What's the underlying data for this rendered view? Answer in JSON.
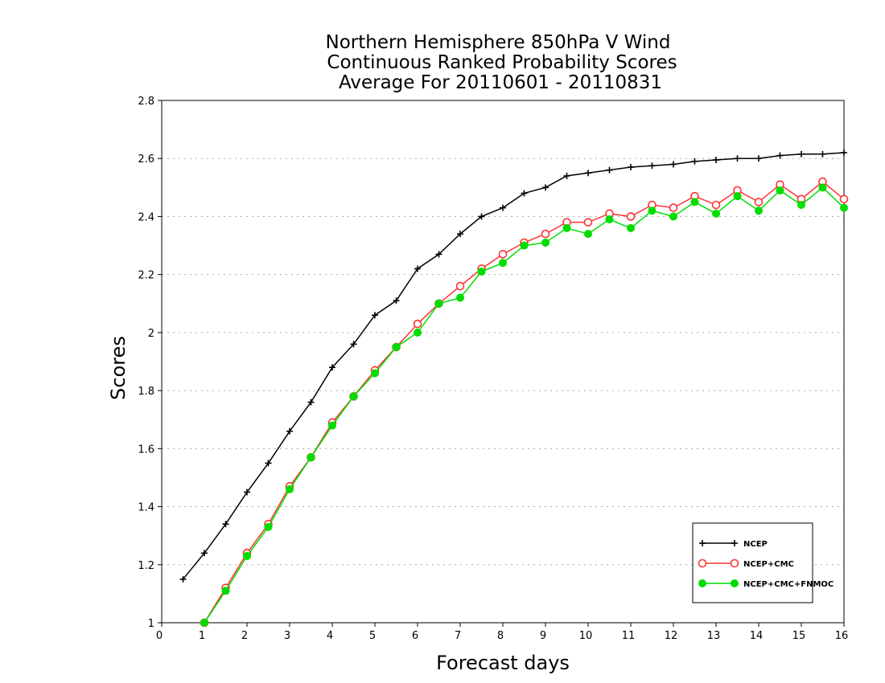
{
  "chart_data": {
    "type": "line",
    "title": [
      "Northern Hemisphere 850hPa V Wind",
      "Continuous Ranked Probability Scores",
      "Average For 20110601 - 20110831"
    ],
    "xlabel": "Forecast days",
    "ylabel": "Scores",
    "xlim": [
      0,
      16
    ],
    "ylim": [
      1,
      2.8
    ],
    "xticks": [
      "0",
      "1",
      "2",
      "3",
      "4",
      "5",
      "6",
      "7",
      "8",
      "9",
      "10",
      "11",
      "12",
      "13",
      "14",
      "15",
      "16"
    ],
    "yticks": [
      "1",
      "1.2",
      "1.4",
      "1.6",
      "1.8",
      "2",
      "2.2",
      "2.4",
      "2.6",
      "2.8"
    ],
    "grid": "horizontal dotted",
    "legend_position": "bottom-right",
    "series": [
      {
        "name": "NCEP",
        "color": "#000000",
        "marker": "plus",
        "x": [
          0.5,
          1,
          1.5,
          2,
          2.5,
          3,
          3.5,
          4,
          4.5,
          5,
          5.5,
          6,
          6.5,
          7,
          7.5,
          8,
          8.5,
          9,
          9.5,
          10,
          10.5,
          11,
          11.5,
          12,
          12.5,
          13,
          13.5,
          14,
          14.5,
          15,
          15.5,
          16
        ],
        "y": [
          1.15,
          1.24,
          1.34,
          1.45,
          1.55,
          1.66,
          1.76,
          1.88,
          1.96,
          2.06,
          2.11,
          2.22,
          2.27,
          2.34,
          2.4,
          2.43,
          2.48,
          2.5,
          2.54,
          2.55,
          2.56,
          2.57,
          2.575,
          2.58,
          2.59,
          2.595,
          2.6,
          2.6,
          2.61,
          2.615,
          2.615,
          2.62
        ]
      },
      {
        "name": "NCEP+CMC",
        "color": "#ff3333",
        "marker": "open-circle",
        "x": [
          1,
          1.5,
          2,
          2.5,
          3,
          3.5,
          4,
          4.5,
          5,
          5.5,
          6,
          6.5,
          7,
          7.5,
          8,
          8.5,
          9,
          9.5,
          10,
          10.5,
          11,
          11.5,
          12,
          12.5,
          13,
          13.5,
          14,
          14.5,
          15,
          15.5,
          16
        ],
        "y": [
          1.0,
          1.12,
          1.24,
          1.34,
          1.47,
          1.57,
          1.69,
          1.78,
          1.87,
          1.95,
          2.03,
          2.1,
          2.16,
          2.22,
          2.27,
          2.31,
          2.34,
          2.38,
          2.38,
          2.41,
          2.4,
          2.44,
          2.43,
          2.47,
          2.44,
          2.49,
          2.45,
          2.51,
          2.46,
          2.52,
          2.46
        ]
      },
      {
        "name": "NCEP+CMC+FNMOC",
        "color": "#00dd00",
        "marker": "filled-circle",
        "x": [
          1,
          1.5,
          2,
          2.5,
          3,
          3.5,
          4,
          4.5,
          5,
          5.5,
          6,
          6.5,
          7,
          7.5,
          8,
          8.5,
          9,
          9.5,
          10,
          10.5,
          11,
          11.5,
          12,
          12.5,
          13,
          13.5,
          14,
          14.5,
          15,
          15.5,
          16
        ],
        "y": [
          1.0,
          1.11,
          1.23,
          1.33,
          1.46,
          1.57,
          1.68,
          1.78,
          1.86,
          1.95,
          2.0,
          2.1,
          2.12,
          2.21,
          2.24,
          2.3,
          2.31,
          2.36,
          2.34,
          2.39,
          2.36,
          2.42,
          2.4,
          2.45,
          2.41,
          2.47,
          2.42,
          2.49,
          2.44,
          2.5,
          2.43
        ]
      }
    ]
  }
}
